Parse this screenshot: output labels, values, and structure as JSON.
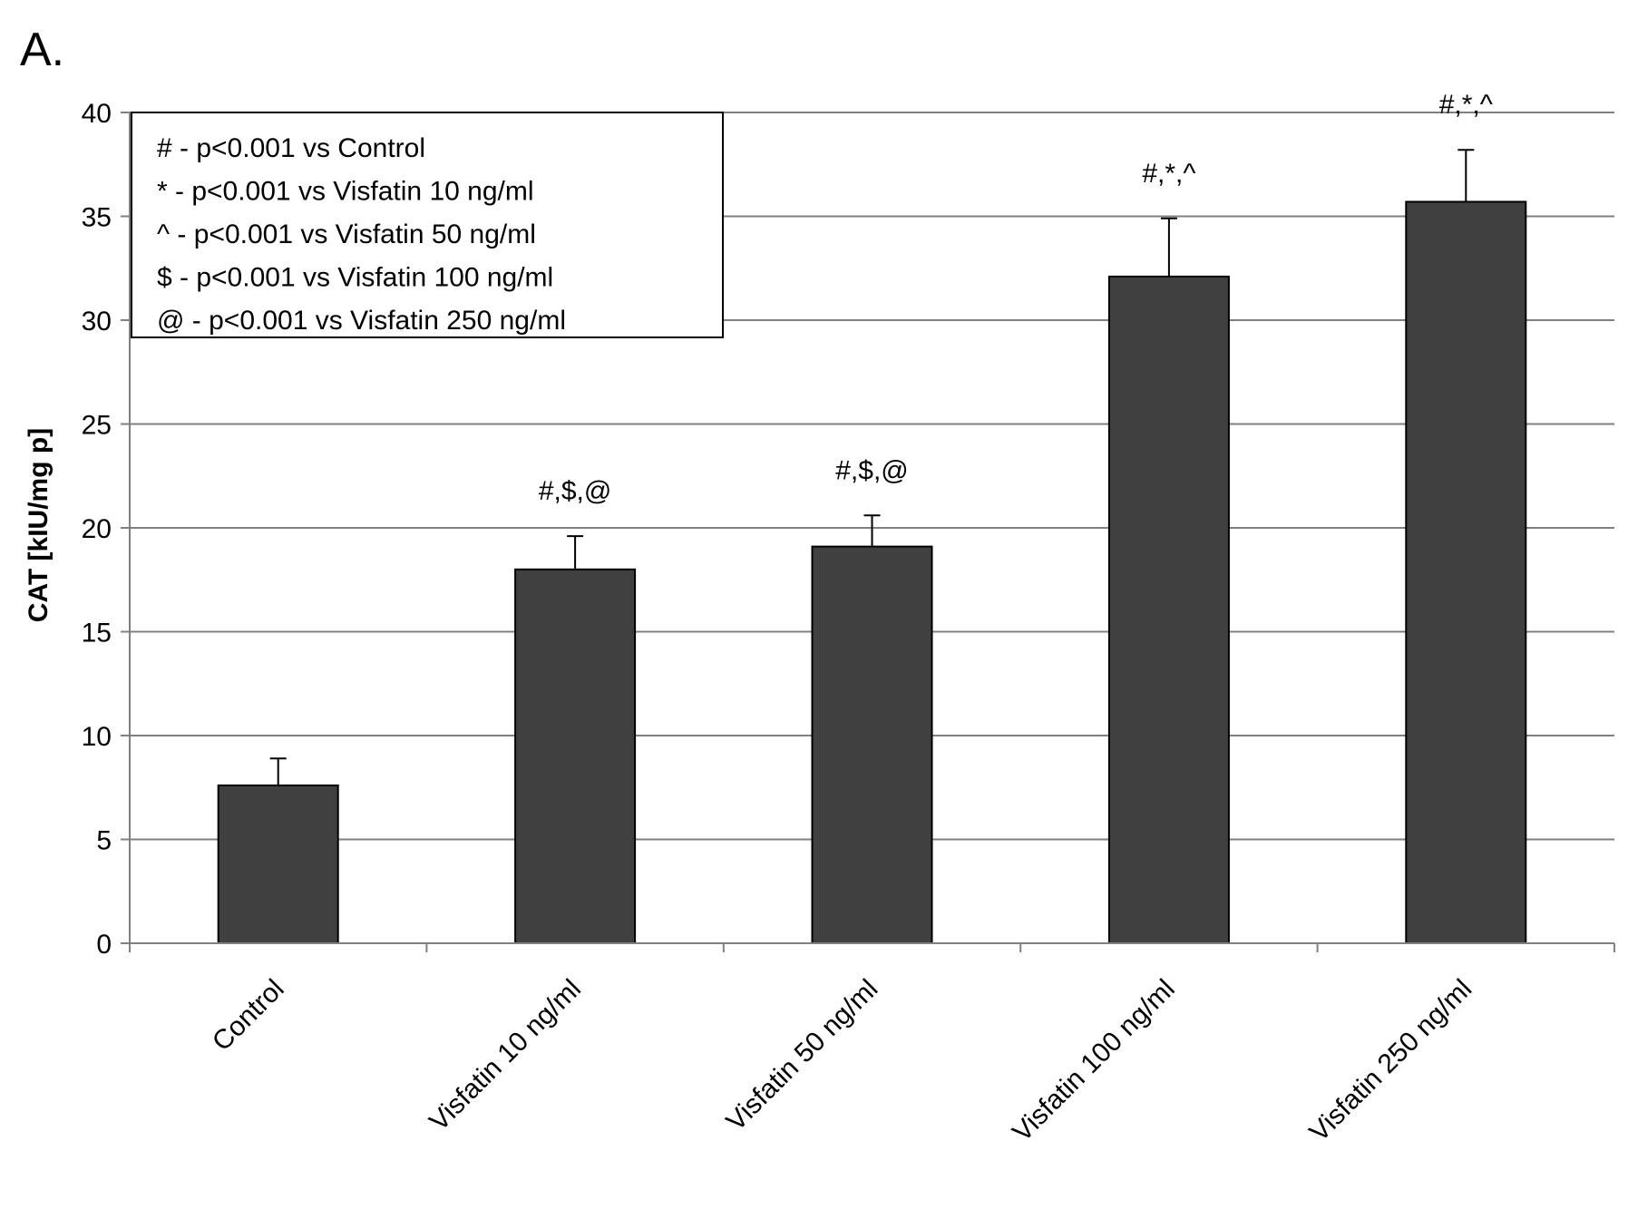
{
  "panel_label": "A.",
  "legend": {
    "entries": [
      "# - p<0.001 vs Control",
      "* - p<0.001 vs Visfatin 10 ng/ml",
      "^ - p<0.001 vs Visfatin 50 ng/ml",
      "$ - p<0.001 vs Visfatin 100 ng/ml",
      "@ - p<0.001 vs Visfatin 250 ng/ml"
    ]
  },
  "colors": {
    "bar": "#404040",
    "grid": "#808080",
    "axis": "#808080"
  },
  "chart_data": {
    "type": "bar",
    "title": "",
    "xlabel": "",
    "ylabel": "CAT [kIU/mg p]",
    "ylim": [
      0,
      40
    ],
    "yticks": [
      0,
      5,
      10,
      15,
      20,
      25,
      30,
      35,
      40
    ],
    "grid": true,
    "legend_position": "top-left",
    "categories": [
      "Control",
      "Visfatin 10 ng/ml",
      "Visfatin 50 ng/ml",
      "Visfatin 100 ng/ml",
      "Visfatin 250 ng/ml"
    ],
    "values": [
      7.6,
      18.0,
      19.1,
      32.1,
      35.7
    ],
    "error_upper": [
      1.3,
      1.6,
      1.5,
      2.8,
      2.5
    ],
    "annotations": [
      "",
      "#,$,@",
      "#,$,@",
      "#,*,^",
      "#,*,^"
    ]
  }
}
